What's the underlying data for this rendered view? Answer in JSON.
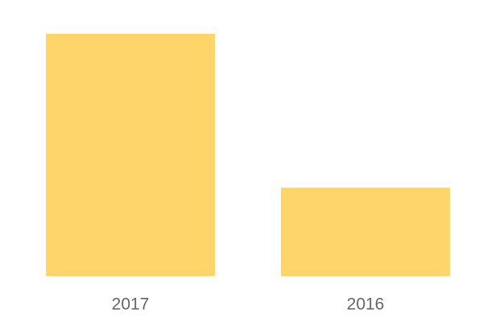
{
  "chart_data": {
    "type": "bar",
    "categories": [
      "2017",
      "2016"
    ],
    "values": [
      100,
      36.5
    ],
    "color": "#fdd56b",
    "ylim": [
      0,
      100
    ]
  }
}
